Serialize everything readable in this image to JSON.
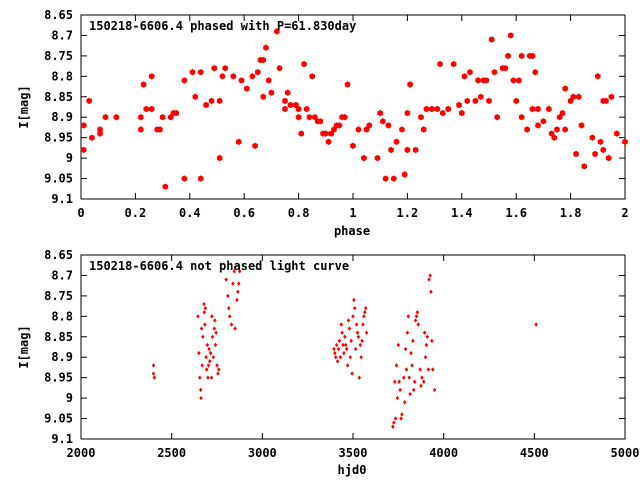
{
  "colors": {
    "points": "#ff0000",
    "frame": "#000000",
    "background": "#ffffff"
  },
  "chart_data": [
    {
      "type": "scatter",
      "title": "150218-6606.4 phased with P=61.830day",
      "xlabel": "phase",
      "ylabel": "I[mag]",
      "xlim": [
        0,
        2
      ],
      "ylim": [
        9.1,
        8.65
      ],
      "y_inverted": true,
      "grid": false,
      "xticks": [
        0,
        0.2,
        0.4,
        0.6,
        0.8,
        1,
        1.2,
        1.4,
        1.6,
        1.8,
        2
      ],
      "xtick_labels": [
        "0",
        "0.2",
        "0.4",
        "0.6",
        "0.8",
        "1",
        "1.2",
        "1.4",
        "1.6",
        "1.8",
        "2"
      ],
      "yticks": [
        8.65,
        8.7,
        8.75,
        8.8,
        8.85,
        8.9,
        8.95,
        9,
        9.05,
        9.1
      ],
      "ytick_labels": [
        "8.65",
        "8.7",
        "8.75",
        "8.8",
        "8.85",
        "8.9",
        "8.95",
        "9",
        "9.05",
        "9.1"
      ],
      "marker": "filled-hexagon",
      "points": [
        [
          0.01,
          8.98
        ],
        [
          0.01,
          8.92
        ],
        [
          0.03,
          8.86
        ],
        [
          0.04,
          8.95
        ],
        [
          0.07,
          8.94
        ],
        [
          0.07,
          8.93
        ],
        [
          0.09,
          8.9
        ],
        [
          0.13,
          8.9
        ],
        [
          0.22,
          8.9
        ],
        [
          0.22,
          8.93
        ],
        [
          0.23,
          8.82
        ],
        [
          0.24,
          8.88
        ],
        [
          0.26,
          8.88
        ],
        [
          0.26,
          8.8
        ],
        [
          0.28,
          8.93
        ],
        [
          0.29,
          8.93
        ],
        [
          0.3,
          8.9
        ],
        [
          0.31,
          9.07
        ],
        [
          0.33,
          8.9
        ],
        [
          0.34,
          8.89
        ],
        [
          0.35,
          8.89
        ],
        [
          0.38,
          9.05
        ],
        [
          0.38,
          8.81
        ],
        [
          0.41,
          8.79
        ],
        [
          0.42,
          8.85
        ],
        [
          0.44,
          9.05
        ],
        [
          0.44,
          8.79
        ],
        [
          0.46,
          8.87
        ],
        [
          0.48,
          8.86
        ],
        [
          0.49,
          8.78
        ],
        [
          0.51,
          8.86
        ],
        [
          0.51,
          9.0
        ],
        [
          0.52,
          8.8
        ],
        [
          0.53,
          8.78
        ],
        [
          0.56,
          8.8
        ],
        [
          0.58,
          8.96
        ],
        [
          0.59,
          8.81
        ],
        [
          0.61,
          8.83
        ],
        [
          0.63,
          8.8
        ],
        [
          0.64,
          8.97
        ],
        [
          0.65,
          8.79
        ],
        [
          0.66,
          8.76
        ],
        [
          0.67,
          8.85
        ],
        [
          0.67,
          8.76
        ],
        [
          0.68,
          8.73
        ],
        [
          0.69,
          8.81
        ],
        [
          0.7,
          8.84
        ],
        [
          0.72,
          8.69
        ],
        [
          0.73,
          8.78
        ],
        [
          0.75,
          8.86
        ],
        [
          0.75,
          8.88
        ],
        [
          0.76,
          8.84
        ],
        [
          0.77,
          8.87
        ],
        [
          0.79,
          8.87
        ],
        [
          0.8,
          8.88
        ],
        [
          0.8,
          8.9
        ],
        [
          0.81,
          8.94
        ],
        [
          0.82,
          8.77
        ],
        [
          0.83,
          8.88
        ],
        [
          0.84,
          8.9
        ],
        [
          0.85,
          8.8
        ],
        [
          0.86,
          8.9
        ],
        [
          0.87,
          8.91
        ],
        [
          0.88,
          8.91
        ],
        [
          0.89,
          8.94
        ],
        [
          0.9,
          8.94
        ],
        [
          0.91,
          8.96
        ],
        [
          0.92,
          8.94
        ],
        [
          0.93,
          8.93
        ],
        [
          0.94,
          8.92
        ],
        [
          0.95,
          8.92
        ],
        [
          0.96,
          8.9
        ],
        [
          0.97,
          8.9
        ],
        [
          0.98,
          8.82
        ],
        [
          1.0,
          8.97
        ],
        [
          1.02,
          8.93
        ],
        [
          1.04,
          9.0
        ],
        [
          1.05,
          8.93
        ],
        [
          1.06,
          8.92
        ],
        [
          1.09,
          9.0
        ],
        [
          1.1,
          8.89
        ],
        [
          1.11,
          8.91
        ],
        [
          1.12,
          9.05
        ],
        [
          1.13,
          8.92
        ],
        [
          1.14,
          8.98
        ],
        [
          1.15,
          9.05
        ],
        [
          1.16,
          8.96
        ],
        [
          1.18,
          8.93
        ],
        [
          1.19,
          9.04
        ],
        [
          1.2,
          8.98
        ],
        [
          1.2,
          8.89
        ],
        [
          1.21,
          8.82
        ],
        [
          1.23,
          8.98
        ],
        [
          1.25,
          8.9
        ],
        [
          1.26,
          8.93
        ],
        [
          1.27,
          8.88
        ],
        [
          1.29,
          8.88
        ],
        [
          1.31,
          8.88
        ],
        [
          1.32,
          8.77
        ],
        [
          1.33,
          8.89
        ],
        [
          1.35,
          8.88
        ],
        [
          1.37,
          8.77
        ],
        [
          1.39,
          8.87
        ],
        [
          1.4,
          8.89
        ],
        [
          1.41,
          8.8
        ],
        [
          1.42,
          8.86
        ],
        [
          1.43,
          8.79
        ],
        [
          1.45,
          8.86
        ],
        [
          1.46,
          8.81
        ],
        [
          1.47,
          8.85
        ],
        [
          1.48,
          8.81
        ],
        [
          1.49,
          8.81
        ],
        [
          1.5,
          8.86
        ],
        [
          1.51,
          8.71
        ],
        [
          1.52,
          8.79
        ],
        [
          1.53,
          8.9
        ],
        [
          1.55,
          8.78
        ],
        [
          1.56,
          8.78
        ],
        [
          1.57,
          8.75
        ],
        [
          1.58,
          8.7
        ],
        [
          1.59,
          8.81
        ],
        [
          1.6,
          8.86
        ],
        [
          1.61,
          8.81
        ],
        [
          1.62,
          8.75
        ],
        [
          1.62,
          8.9
        ],
        [
          1.64,
          8.93
        ],
        [
          1.65,
          8.75
        ],
        [
          1.66,
          8.75
        ],
        [
          1.66,
          8.88
        ],
        [
          1.67,
          8.79
        ],
        [
          1.68,
          8.88
        ],
        [
          1.68,
          8.92
        ],
        [
          1.7,
          8.91
        ],
        [
          1.72,
          8.88
        ],
        [
          1.73,
          8.94
        ],
        [
          1.74,
          8.95
        ],
        [
          1.75,
          8.93
        ],
        [
          1.76,
          8.9
        ],
        [
          1.77,
          8.89
        ],
        [
          1.78,
          8.83
        ],
        [
          1.78,
          8.93
        ],
        [
          1.8,
          8.86
        ],
        [
          1.81,
          8.85
        ],
        [
          1.82,
          8.99
        ],
        [
          1.83,
          8.85
        ],
        [
          1.84,
          8.92
        ],
        [
          1.85,
          9.02
        ],
        [
          1.88,
          8.95
        ],
        [
          1.89,
          8.99
        ],
        [
          1.9,
          8.8
        ],
        [
          1.91,
          8.96
        ],
        [
          1.92,
          8.86
        ],
        [
          1.92,
          8.98
        ],
        [
          1.93,
          8.86
        ],
        [
          1.94,
          9.0
        ],
        [
          1.95,
          8.85
        ],
        [
          1.97,
          8.94
        ],
        [
          2.0,
          8.96
        ]
      ]
    },
    {
      "type": "scatter",
      "title": "150218-6606.4 not phased light curve",
      "xlabel": "hjd0",
      "ylabel": "I[mag]",
      "xlim": [
        2000,
        5000
      ],
      "ylim": [
        9.1,
        8.65
      ],
      "y_inverted": true,
      "grid": false,
      "xticks": [
        2000,
        2500,
        3000,
        3500,
        4000,
        4500,
        5000
      ],
      "xtick_labels": [
        "2000",
        "2500",
        "3000",
        "3500",
        "4000",
        "4500",
        "5000"
      ],
      "yticks": [
        8.65,
        8.7,
        8.75,
        8.8,
        8.85,
        8.9,
        8.95,
        9,
        9.05,
        9.1
      ],
      "ytick_labels": [
        "8.65",
        "8.7",
        "8.75",
        "8.8",
        "8.85",
        "8.9",
        "8.95",
        "9",
        "9.05",
        "9.1"
      ],
      "marker": "small-diamond",
      "points": [
        [
          2400,
          8.92
        ],
        [
          2400,
          8.94
        ],
        [
          2405,
          8.95
        ],
        [
          2645,
          8.8
        ],
        [
          2650,
          8.89
        ],
        [
          2655,
          8.95
        ],
        [
          2660,
          8.98
        ],
        [
          2662,
          9.0
        ],
        [
          2665,
          8.83
        ],
        [
          2668,
          8.92
        ],
        [
          2672,
          8.85
        ],
        [
          2678,
          8.77
        ],
        [
          2680,
          8.79
        ],
        [
          2683,
          8.82
        ],
        [
          2686,
          8.78
        ],
        [
          2690,
          8.9
        ],
        [
          2693,
          8.93
        ],
        [
          2697,
          8.87
        ],
        [
          2700,
          8.95
        ],
        [
          2703,
          8.92
        ],
        [
          2706,
          8.88
        ],
        [
          2710,
          8.91
        ],
        [
          2715,
          8.89
        ],
        [
          2720,
          8.95
        ],
        [
          2722,
          8.8
        ],
        [
          2725,
          8.85
        ],
        [
          2730,
          8.9
        ],
        [
          2735,
          8.83
        ],
        [
          2738,
          8.81
        ],
        [
          2742,
          8.87
        ],
        [
          2745,
          8.84
        ],
        [
          2750,
          8.92
        ],
        [
          2755,
          8.94
        ],
        [
          2760,
          8.93
        ],
        [
          2800,
          8.71
        ],
        [
          2810,
          8.75
        ],
        [
          2815,
          8.78
        ],
        [
          2820,
          8.8
        ],
        [
          2830,
          8.82
        ],
        [
          2838,
          8.72
        ],
        [
          2845,
          8.69
        ],
        [
          2850,
          8.83
        ],
        [
          2860,
          8.76
        ],
        [
          2865,
          8.74
        ],
        [
          2870,
          8.72
        ],
        [
          2875,
          8.69
        ],
        [
          3395,
          8.88
        ],
        [
          3400,
          8.89
        ],
        [
          3405,
          8.9
        ],
        [
          3410,
          8.87
        ],
        [
          3415,
          8.91
        ],
        [
          3420,
          8.88
        ],
        [
          3425,
          8.86
        ],
        [
          3430,
          8.9
        ],
        [
          3435,
          8.82
        ],
        [
          3440,
          8.84
        ],
        [
          3445,
          8.87
        ],
        [
          3450,
          8.89
        ],
        [
          3455,
          8.85
        ],
        [
          3460,
          8.87
        ],
        [
          3465,
          8.88
        ],
        [
          3470,
          8.92
        ],
        [
          3475,
          8.81
        ],
        [
          3480,
          8.83
        ],
        [
          3485,
          8.9
        ],
        [
          3490,
          8.86
        ],
        [
          3495,
          8.94
        ],
        [
          3500,
          8.8
        ],
        [
          3505,
          8.76
        ],
        [
          3510,
          8.78
        ],
        [
          3515,
          8.88
        ],
        [
          3520,
          8.82
        ],
        [
          3525,
          8.84
        ],
        [
          3530,
          8.85
        ],
        [
          3535,
          8.95
        ],
        [
          3540,
          8.87
        ],
        [
          3545,
          8.9
        ],
        [
          3550,
          8.86
        ],
        [
          3555,
          8.82
        ],
        [
          3560,
          8.8
        ],
        [
          3565,
          8.79
        ],
        [
          3570,
          8.78
        ],
        [
          3575,
          8.84
        ],
        [
          3720,
          9.07
        ],
        [
          3725,
          9.06
        ],
        [
          3730,
          8.96
        ],
        [
          3735,
          9.05
        ],
        [
          3740,
          8.92
        ],
        [
          3745,
          9.0
        ],
        [
          3750,
          8.87
        ],
        [
          3755,
          8.96
        ],
        [
          3760,
          8.98
        ],
        [
          3765,
          9.05
        ],
        [
          3770,
          9.04
        ],
        [
          3780,
          8.95
        ],
        [
          3785,
          9.01
        ],
        [
          3790,
          8.88
        ],
        [
          3795,
          8.93
        ],
        [
          3800,
          8.84
        ],
        [
          3805,
          8.8
        ],
        [
          3810,
          8.95
        ],
        [
          3815,
          8.99
        ],
        [
          3820,
          8.89
        ],
        [
          3825,
          8.92
        ],
        [
          3830,
          8.86
        ],
        [
          3835,
          8.98
        ],
        [
          3840,
          8.96
        ],
        [
          3845,
          8.81
        ],
        [
          3850,
          8.8
        ],
        [
          3855,
          8.79
        ],
        [
          3860,
          8.82
        ],
        [
          3870,
          8.93
        ],
        [
          3875,
          8.97
        ],
        [
          3880,
          8.95
        ],
        [
          3890,
          8.96
        ],
        [
          3895,
          8.84
        ],
        [
          3900,
          8.9
        ],
        [
          3905,
          8.87
        ],
        [
          3910,
          8.85
        ],
        [
          3915,
          8.93
        ],
        [
          3920,
          8.71
        ],
        [
          3925,
          8.7
        ],
        [
          3930,
          8.74
        ],
        [
          3935,
          8.86
        ],
        [
          3940,
          8.93
        ],
        [
          3950,
          8.98
        ],
        [
          4510,
          8.82
        ]
      ]
    }
  ]
}
